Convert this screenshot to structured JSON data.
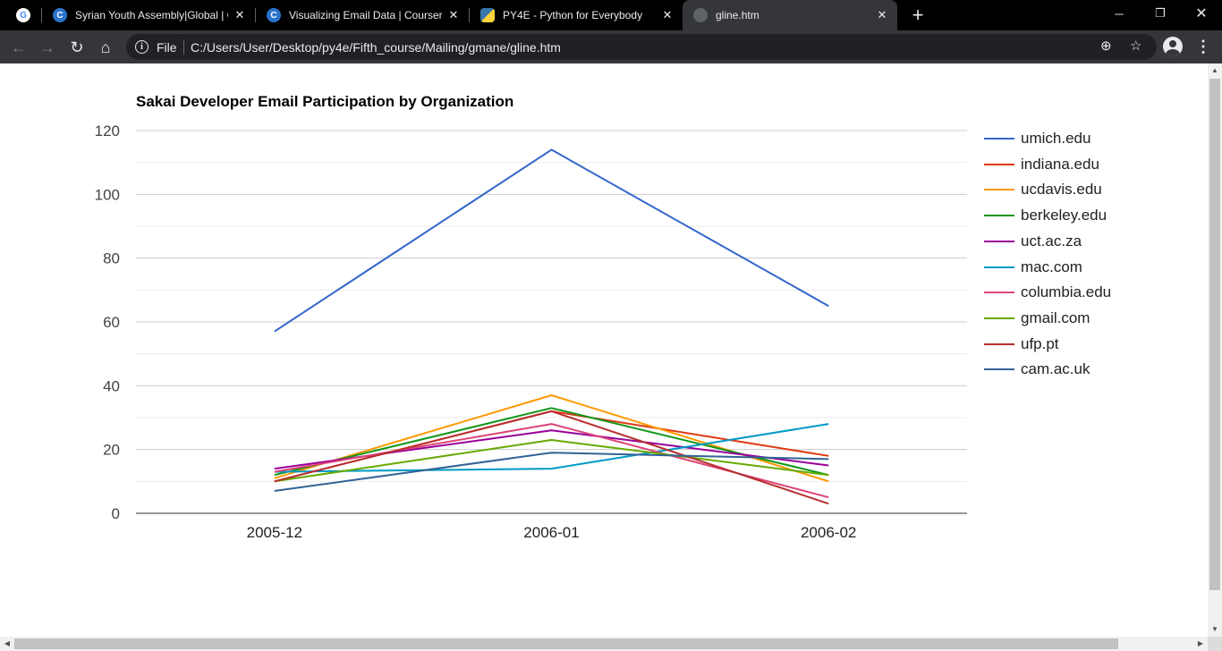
{
  "browser": {
    "tabs": [
      {
        "title": "",
        "favicon": "google-icon",
        "active": false
      },
      {
        "title": "Syrian Youth Assembly|Global | C",
        "favicon": "coursera-icon",
        "active": false
      },
      {
        "title": "Visualizing Email Data | Coursera",
        "favicon": "coursera-icon",
        "active": false
      },
      {
        "title": "PY4E - Python for Everybody",
        "favicon": "python-icon",
        "active": false
      },
      {
        "title": "gline.htm",
        "favicon": "globe-icon",
        "active": true
      }
    ],
    "address": {
      "scheme_label": "File",
      "url": "C:/Users/User/Desktop/py4e/Fifth_course/Mailing/gmane/gline.htm"
    }
  },
  "chart_data": {
    "type": "line",
    "title": "Sakai Developer Email Participation by Organization",
    "categories": [
      "2005-12",
      "2006-01",
      "2006-02"
    ],
    "ylim": [
      0,
      120
    ],
    "yticks": [
      0,
      20,
      40,
      60,
      80,
      100,
      120
    ],
    "grid": true,
    "legend": "right",
    "series": [
      {
        "name": "umich.edu",
        "color": "#3366cc",
        "values": [
          57,
          114,
          65
        ]
      },
      {
        "name": "indiana.edu",
        "color": "#dc3912",
        "values": [
          10,
          32,
          18
        ]
      },
      {
        "name": "ucdavis.edu",
        "color": "#ff9900",
        "values": [
          11,
          37,
          10
        ]
      },
      {
        "name": "berkeley.edu",
        "color": "#109618",
        "values": [
          12,
          33,
          12
        ]
      },
      {
        "name": "uct.ac.za",
        "color": "#990099",
        "values": [
          14,
          26,
          15
        ]
      },
      {
        "name": "mac.com",
        "color": "#0099c6",
        "values": [
          13,
          14,
          28
        ]
      },
      {
        "name": "columbia.edu",
        "color": "#dd4477",
        "values": [
          13,
          28,
          5
        ]
      },
      {
        "name": "gmail.com",
        "color": "#66aa00",
        "values": [
          10,
          23,
          12
        ]
      },
      {
        "name": "ufp.pt",
        "color": "#b82e2e",
        "values": [
          10,
          32,
          3
        ]
      },
      {
        "name": "cam.ac.uk",
        "color": "#316395",
        "values": [
          7,
          19,
          17
        ]
      }
    ]
  }
}
